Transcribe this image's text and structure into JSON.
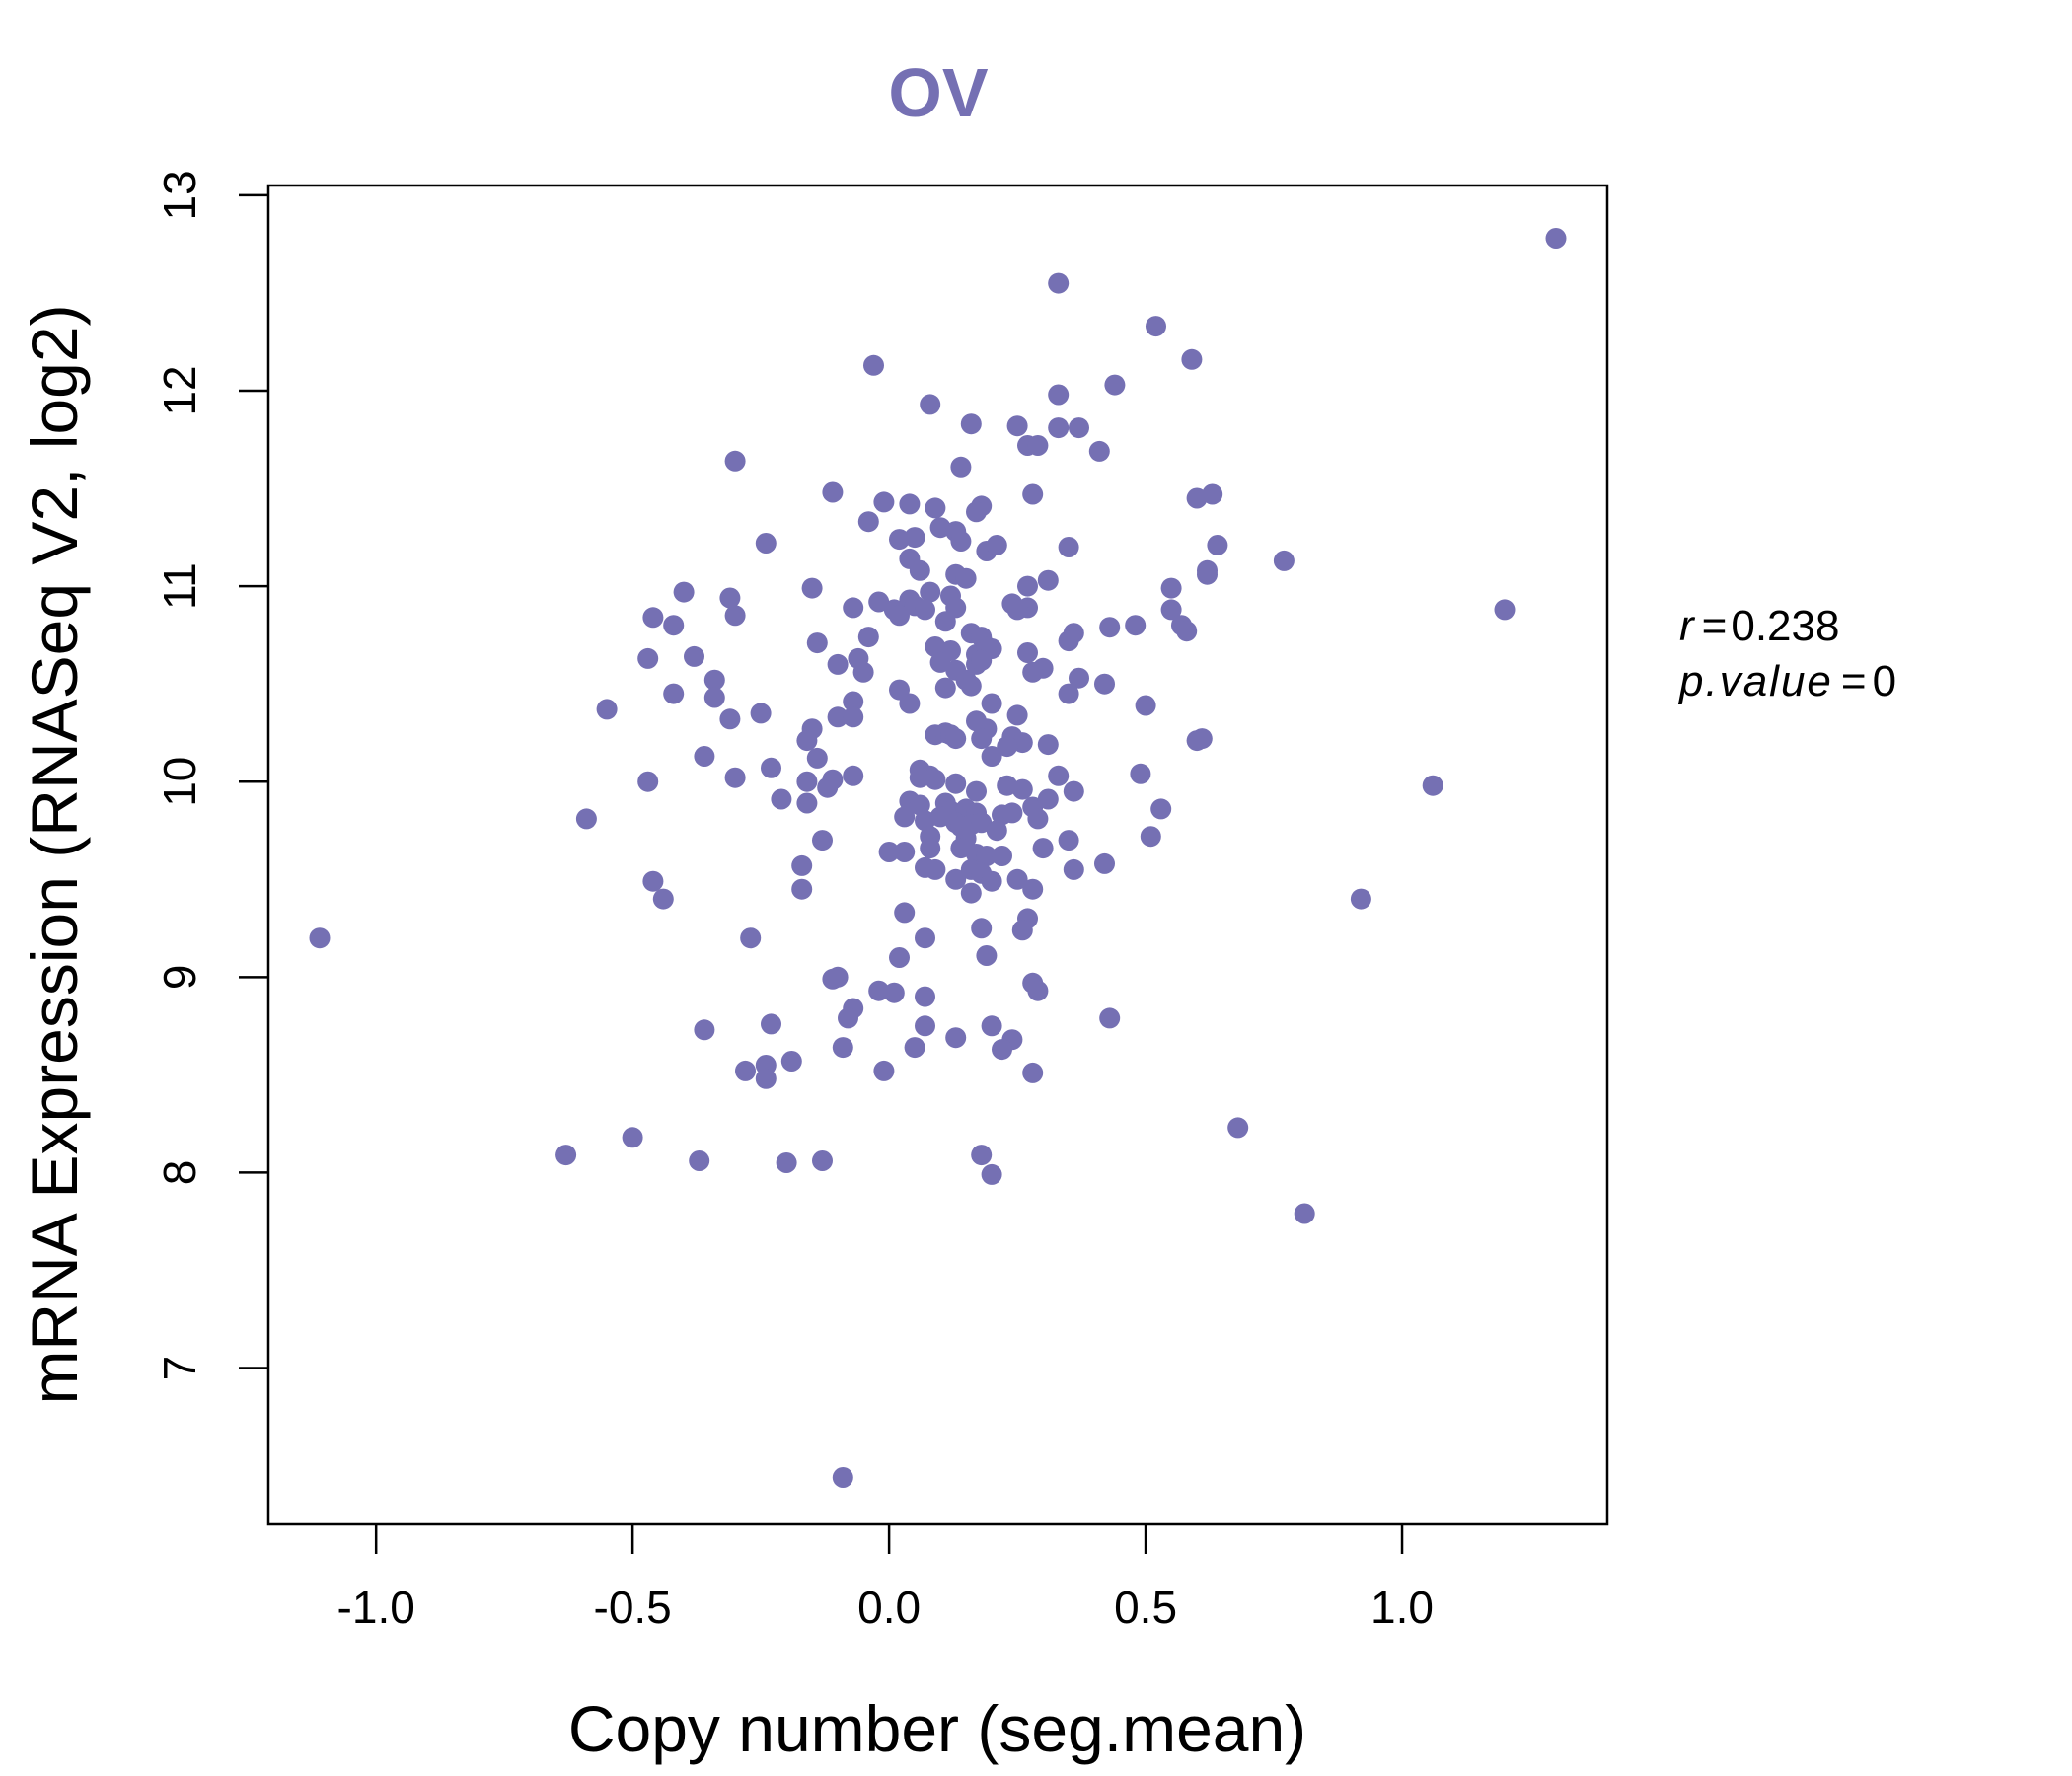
{
  "colors": {
    "accent": "#7570b3",
    "axis": "#000000",
    "background": "#ffffff"
  },
  "stats": {
    "r_label": "r",
    "r_value": "0.238",
    "p_label": "p.value",
    "p_value": "0"
  },
  "chart_data": {
    "type": "scatter",
    "title": "OV",
    "xlabel": "Copy number (seg.mean)",
    "ylabel": "mRNA Expression (RNASeq V2, log2)",
    "xlim": [
      -1.21,
      1.4
    ],
    "ylim": [
      6.2,
      13.05
    ],
    "xticks": [
      -1.0,
      -0.5,
      0.0,
      0.5,
      1.0
    ],
    "xtick_labels": [
      "-1.0",
      "-0.5",
      "0.0",
      "0.5",
      "1.0"
    ],
    "yticks": [
      7,
      8,
      9,
      10,
      11,
      12,
      13
    ],
    "ytick_labels": [
      "7",
      "8",
      "9",
      "10",
      "11",
      "12",
      "13"
    ],
    "grid": false,
    "points": [
      [
        1.3,
        12.78
      ],
      [
        0.33,
        12.55
      ],
      [
        0.52,
        12.33
      ],
      [
        0.59,
        12.16
      ],
      [
        -0.03,
        12.13
      ],
      [
        0.44,
        12.03
      ],
      [
        0.33,
        11.98
      ],
      [
        0.08,
        11.93
      ],
      [
        0.16,
        11.83
      ],
      [
        0.25,
        11.82
      ],
      [
        0.33,
        11.81
      ],
      [
        0.37,
        11.81
      ],
      [
        0.27,
        11.72
      ],
      [
        0.29,
        11.72
      ],
      [
        0.41,
        11.69
      ],
      [
        -0.3,
        11.64
      ],
      [
        0.14,
        11.61
      ],
      [
        -0.11,
        11.48
      ],
      [
        0.28,
        11.47
      ],
      [
        0.6,
        11.45
      ],
      [
        0.63,
        11.47
      ],
      [
        -0.01,
        11.43
      ],
      [
        0.04,
        11.42
      ],
      [
        0.09,
        11.4
      ],
      [
        0.18,
        11.41
      ],
      [
        0.17,
        11.38
      ],
      [
        -0.04,
        11.33
      ],
      [
        0.1,
        11.3
      ],
      [
        0.13,
        11.28
      ],
      [
        0.05,
        11.25
      ],
      [
        0.02,
        11.24
      ],
      [
        0.14,
        11.23
      ],
      [
        0.19,
        11.18
      ],
      [
        0.21,
        11.21
      ],
      [
        0.35,
        11.2
      ],
      [
        0.64,
        11.21
      ],
      [
        -0.24,
        11.22
      ],
      [
        0.04,
        11.14
      ],
      [
        0.77,
        11.13
      ],
      [
        0.06,
        11.08
      ],
      [
        0.13,
        11.06
      ],
      [
        0.15,
        11.04
      ],
      [
        0.62,
        11.08
      ],
      [
        0.62,
        11.06
      ],
      [
        0.31,
        11.03
      ],
      [
        0.27,
        11.0
      ],
      [
        0.55,
        10.99
      ],
      [
        -0.15,
        10.99
      ],
      [
        0.08,
        10.97
      ],
      [
        0.12,
        10.95
      ],
      [
        -0.4,
        10.97
      ],
      [
        -0.31,
        10.94
      ],
      [
        0.04,
        10.93
      ],
      [
        -0.02,
        10.92
      ],
      [
        0.05,
        10.9
      ],
      [
        0.24,
        10.91
      ],
      [
        0.27,
        10.89
      ],
      [
        0.01,
        10.88
      ],
      [
        0.02,
        10.85
      ],
      [
        -0.07,
        10.89
      ],
      [
        0.07,
        10.88
      ],
      [
        0.13,
        10.89
      ],
      [
        0.25,
        10.88
      ],
      [
        0.55,
        10.88
      ],
      [
        -0.46,
        10.84
      ],
      [
        -0.3,
        10.85
      ],
      [
        0.11,
        10.82
      ],
      [
        0.16,
        10.76
      ],
      [
        0.18,
        10.74
      ],
      [
        0.43,
        10.79
      ],
      [
        0.48,
        10.8
      ],
      [
        0.57,
        10.8
      ],
      [
        0.58,
        10.77
      ],
      [
        -0.42,
        10.8
      ],
      [
        1.2,
        10.88
      ],
      [
        0.36,
        10.76
      ],
      [
        -0.04,
        10.74
      ],
      [
        0.35,
        10.72
      ],
      [
        -0.14,
        10.71
      ],
      [
        0.09,
        10.69
      ],
      [
        0.12,
        10.67
      ],
      [
        0.17,
        10.65
      ],
      [
        0.19,
        10.69
      ],
      [
        0.2,
        10.68
      ],
      [
        -0.38,
        10.64
      ],
      [
        -0.47,
        10.63
      ],
      [
        -0.06,
        10.63
      ],
      [
        -0.1,
        10.6
      ],
      [
        0.1,
        10.61
      ],
      [
        0.13,
        10.57
      ],
      [
        0.17,
        10.6
      ],
      [
        0.18,
        10.62
      ],
      [
        0.27,
        10.66
      ],
      [
        0.3,
        10.58
      ],
      [
        0.28,
        10.56
      ],
      [
        -0.05,
        10.56
      ],
      [
        -0.34,
        10.52
      ],
      [
        0.37,
        10.53
      ],
      [
        0.15,
        10.52
      ],
      [
        0.11,
        10.48
      ],
      [
        0.16,
        10.49
      ],
      [
        0.42,
        10.5
      ],
      [
        0.02,
        10.47
      ],
      [
        0.35,
        10.45
      ],
      [
        -0.42,
        10.45
      ],
      [
        -0.34,
        10.43
      ],
      [
        -0.07,
        10.41
      ],
      [
        0.04,
        10.4
      ],
      [
        0.2,
        10.4
      ],
      [
        0.5,
        10.39
      ],
      [
        -0.55,
        10.37
      ],
      [
        -0.25,
        10.35
      ],
      [
        -0.31,
        10.32
      ],
      [
        -0.1,
        10.33
      ],
      [
        -0.07,
        10.33
      ],
      [
        0.25,
        10.34
      ],
      [
        0.17,
        10.31
      ],
      [
        0.19,
        10.27
      ],
      [
        -0.15,
        10.27
      ],
      [
        0.09,
        10.24
      ],
      [
        0.11,
        10.25
      ],
      [
        0.12,
        10.24
      ],
      [
        0.18,
        10.22
      ],
      [
        0.24,
        10.23
      ],
      [
        0.26,
        10.2
      ],
      [
        0.13,
        10.22
      ],
      [
        0.31,
        10.19
      ],
      [
        -0.16,
        10.21
      ],
      [
        0.6,
        10.21
      ],
      [
        0.61,
        10.22
      ],
      [
        0.23,
        10.18
      ],
      [
        0.2,
        10.13
      ],
      [
        -0.14,
        10.12
      ],
      [
        -0.36,
        10.13
      ],
      [
        -0.23,
        10.07
      ],
      [
        0.06,
        10.06
      ],
      [
        0.08,
        10.03
      ],
      [
        0.09,
        10.01
      ],
      [
        0.06,
        10.02
      ],
      [
        0.13,
        9.99
      ],
      [
        0.33,
        10.03
      ],
      [
        0.49,
        10.04
      ],
      [
        -0.07,
        10.03
      ],
      [
        -0.11,
        10.01
      ],
      [
        -0.3,
        10.02
      ],
      [
        -0.47,
        10.0
      ],
      [
        -0.16,
        10.0
      ],
      [
        -0.12,
        9.97
      ],
      [
        0.23,
        9.98
      ],
      [
        0.26,
        9.96
      ],
      [
        0.17,
        9.95
      ],
      [
        0.36,
        9.95
      ],
      [
        1.06,
        9.98
      ],
      [
        -0.21,
        9.91
      ],
      [
        -0.16,
        9.89
      ],
      [
        0.04,
        9.9
      ],
      [
        0.06,
        9.88
      ],
      [
        0.11,
        9.89
      ],
      [
        0.12,
        9.85
      ],
      [
        0.15,
        9.86
      ],
      [
        0.17,
        9.84
      ],
      [
        0.28,
        9.87
      ],
      [
        0.31,
        9.91
      ],
      [
        0.53,
        9.86
      ],
      [
        0.03,
        9.82
      ],
      [
        0.07,
        9.8
      ],
      [
        0.1,
        9.82
      ],
      [
        0.13,
        9.79
      ],
      [
        0.14,
        9.77
      ],
      [
        0.16,
        9.78
      ],
      [
        0.18,
        9.79
      ],
      [
        0.22,
        9.83
      ],
      [
        0.24,
        9.84
      ],
      [
        0.29,
        9.81
      ],
      [
        0.08,
        9.72
      ],
      [
        0.15,
        9.71
      ],
      [
        0.21,
        9.75
      ],
      [
        0.35,
        9.7
      ],
      [
        0.51,
        9.72
      ],
      [
        -0.59,
        9.81
      ],
      [
        -0.13,
        9.7
      ],
      [
        0.0,
        9.64
      ],
      [
        0.03,
        9.64
      ],
      [
        0.08,
        9.66
      ],
      [
        0.14,
        9.66
      ],
      [
        0.17,
        9.63
      ],
      [
        0.19,
        9.62
      ],
      [
        0.22,
        9.62
      ],
      [
        0.3,
        9.66
      ],
      [
        0.42,
        9.58
      ],
      [
        -0.17,
        9.57
      ],
      [
        0.07,
        9.56
      ],
      [
        0.09,
        9.55
      ],
      [
        0.16,
        9.55
      ],
      [
        0.18,
        9.53
      ],
      [
        0.13,
        9.5
      ],
      [
        0.2,
        9.49
      ],
      [
        0.25,
        9.5
      ],
      [
        0.36,
        9.55
      ],
      [
        -0.46,
        9.49
      ],
      [
        -0.17,
        9.45
      ],
      [
        0.16,
        9.43
      ],
      [
        0.28,
        9.45
      ],
      [
        -0.44,
        9.4
      ],
      [
        0.92,
        9.4
      ],
      [
        -1.11,
        9.2
      ],
      [
        -0.27,
        9.2
      ],
      [
        0.03,
        9.33
      ],
      [
        0.27,
        9.3
      ],
      [
        0.18,
        9.25
      ],
      [
        0.26,
        9.24
      ],
      [
        0.07,
        9.2
      ],
      [
        0.19,
        9.11
      ],
      [
        0.02,
        9.1
      ],
      [
        -0.1,
        9.0
      ],
      [
        -0.11,
        8.99
      ],
      [
        0.28,
        8.97
      ],
      [
        0.29,
        8.93
      ],
      [
        -0.02,
        8.93
      ],
      [
        0.01,
        8.92
      ],
      [
        0.07,
        8.9
      ],
      [
        -0.07,
        8.84
      ],
      [
        -0.08,
        8.79
      ],
      [
        0.43,
        8.79
      ],
      [
        -0.23,
        8.76
      ],
      [
        -0.36,
        8.73
      ],
      [
        0.07,
        8.75
      ],
      [
        0.2,
        8.75
      ],
      [
        0.13,
        8.69
      ],
      [
        0.24,
        8.68
      ],
      [
        0.05,
        8.64
      ],
      [
        -0.09,
        8.64
      ],
      [
        0.22,
        8.63
      ],
      [
        -0.19,
        8.57
      ],
      [
        -0.24,
        8.55
      ],
      [
        -0.28,
        8.52
      ],
      [
        -0.24,
        8.48
      ],
      [
        -0.01,
        8.52
      ],
      [
        0.28,
        8.51
      ],
      [
        0.68,
        8.23
      ],
      [
        -0.5,
        8.18
      ],
      [
        -0.63,
        8.09
      ],
      [
        0.18,
        8.09
      ],
      [
        -0.37,
        8.06
      ],
      [
        -0.2,
        8.05
      ],
      [
        -0.13,
        8.06
      ],
      [
        0.2,
        7.99
      ],
      [
        0.81,
        7.79
      ],
      [
        -0.09,
        6.44
      ]
    ]
  }
}
